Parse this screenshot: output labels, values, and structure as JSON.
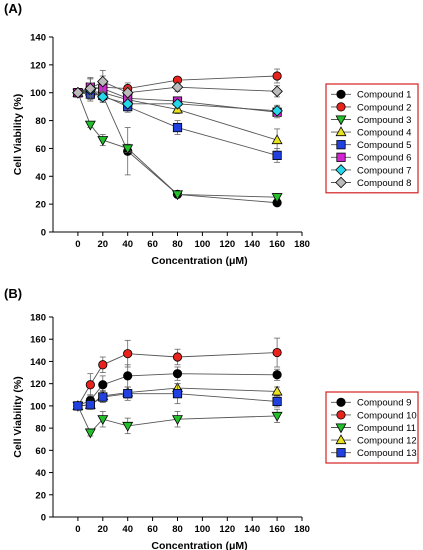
{
  "chart_data": [
    {
      "type": "scatter",
      "panel_label": "(A)",
      "xlabel": "Concentration (μM)",
      "ylabel": "Cell Viability (%)",
      "xlim": [
        -20,
        180
      ],
      "ylim": [
        0,
        140
      ],
      "xticks": [
        0,
        20,
        40,
        60,
        80,
        100,
        120,
        140,
        160,
        180
      ],
      "yticks": [
        0,
        20,
        40,
        60,
        80,
        100,
        120,
        140
      ],
      "x": [
        0,
        10,
        20,
        40,
        80,
        160
      ],
      "legend_position": "right",
      "series": [
        {
          "name": "Compound 1",
          "marker": "circle",
          "color": "#000000",
          "values": [
            100,
            100,
            98,
            58,
            27,
            21
          ],
          "errors": [
            0,
            4,
            4,
            17,
            2,
            2
          ]
        },
        {
          "name": "Compound 2",
          "marker": "circle",
          "color": "#e8231d",
          "values": [
            100,
            102,
            104,
            103,
            109,
            112
          ],
          "errors": [
            0,
            8,
            8,
            4,
            2,
            5
          ]
        },
        {
          "name": "Compound 3",
          "marker": "triangle-down",
          "color": "#23c02c",
          "values": [
            100,
            77,
            66,
            60,
            27,
            25
          ],
          "errors": [
            0,
            2,
            4,
            3,
            1,
            1
          ]
        },
        {
          "name": "Compound 4",
          "marker": "triangle-up",
          "color": "#e9e31f",
          "values": [
            100,
            101,
            100,
            95,
            88,
            66
          ],
          "errors": [
            0,
            4,
            6,
            5,
            3,
            8
          ]
        },
        {
          "name": "Compound 5",
          "marker": "square",
          "color": "#2040e0",
          "values": [
            100,
            99,
            98,
            90,
            75,
            55
          ],
          "errors": [
            0,
            3,
            4,
            4,
            5,
            5
          ]
        },
        {
          "name": "Compound 6",
          "marker": "square",
          "color": "#d225d2",
          "values": [
            100,
            104,
            103,
            96,
            94,
            86
          ],
          "errors": [
            0,
            6,
            6,
            4,
            3,
            4
          ]
        },
        {
          "name": "Compound 7",
          "marker": "diamond",
          "color": "#25d7e8",
          "values": [
            100,
            102,
            97,
            92,
            92,
            87
          ],
          "errors": [
            0,
            5,
            4,
            4,
            3,
            4
          ]
        },
        {
          "name": "Compound 8",
          "marker": "diamond",
          "color": "#bbbbbb",
          "values": [
            100,
            103,
            108,
            100,
            104,
            101
          ],
          "errors": [
            0,
            8,
            8,
            4,
            3,
            4
          ]
        }
      ]
    },
    {
      "type": "scatter",
      "panel_label": "(B)",
      "xlabel": "Concentration (μM)",
      "ylabel": "Cell Viability (%)",
      "xlim": [
        -20,
        180
      ],
      "ylim": [
        0,
        180
      ],
      "xticks": [
        0,
        20,
        40,
        60,
        80,
        100,
        120,
        140,
        160,
        180
      ],
      "yticks": [
        0,
        20,
        40,
        60,
        80,
        100,
        120,
        140,
        160,
        180
      ],
      "x": [
        0,
        10,
        20,
        40,
        80,
        160
      ],
      "legend_position": "right",
      "series": [
        {
          "name": "Compound 9",
          "marker": "circle",
          "color": "#000000",
          "values": [
            100,
            105,
            119,
            127,
            129,
            128
          ],
          "errors": [
            0,
            5,
            8,
            10,
            6,
            5
          ]
        },
        {
          "name": "Compound 10",
          "marker": "circle",
          "color": "#e8231d",
          "values": [
            100,
            119,
            137,
            147,
            144,
            148
          ],
          "errors": [
            0,
            10,
            7,
            12,
            7,
            13
          ]
        },
        {
          "name": "Compound 11",
          "marker": "triangle-down",
          "color": "#23c02c",
          "values": [
            100,
            76,
            88,
            82,
            88,
            91
          ],
          "errors": [
            0,
            3,
            7,
            7,
            7,
            6
          ]
        },
        {
          "name": "Compound 12",
          "marker": "triangle-up",
          "color": "#e9e31f",
          "values": [
            100,
            101,
            109,
            112,
            116,
            113
          ],
          "errors": [
            0,
            4,
            5,
            5,
            4,
            4
          ]
        },
        {
          "name": "Compound 13",
          "marker": "square",
          "color": "#2040e0",
          "values": [
            100,
            101,
            108,
            111,
            111,
            104
          ],
          "errors": [
            0,
            4,
            5,
            6,
            9,
            5
          ]
        }
      ]
    }
  ]
}
